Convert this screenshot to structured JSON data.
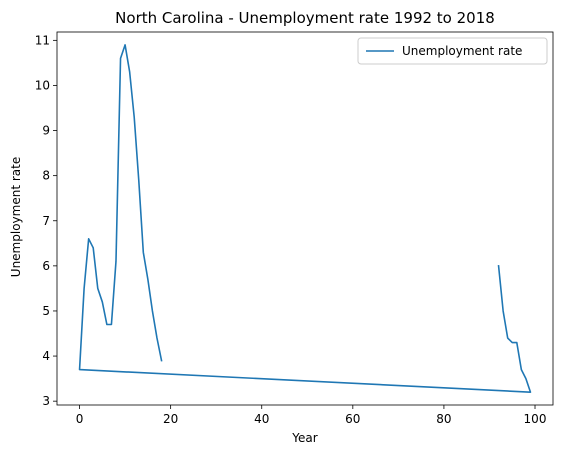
{
  "chart_data": {
    "type": "line",
    "title": "North Carolina - Unemployment rate 1992 to 2018",
    "xlabel": "Year",
    "ylabel": "Unemployment rate",
    "xlim": [
      -4.95,
      103.95
    ],
    "ylim": [
      2.915,
      11.185
    ],
    "xticks": [
      0,
      20,
      40,
      60,
      80,
      100
    ],
    "yticks": [
      3,
      4,
      5,
      6,
      7,
      8,
      9,
      10,
      11
    ],
    "xtick_labels": [
      "0",
      "20",
      "40",
      "60",
      "80",
      "100"
    ],
    "ytick_labels": [
      "3",
      "4",
      "5",
      "6",
      "7",
      "8",
      "9",
      "10",
      "11"
    ],
    "grid": false,
    "legend": "upper right",
    "series": [
      {
        "name": "Unemployment rate",
        "color": "#1f77b4",
        "x": [
          92,
          93,
          94,
          95,
          96,
          97,
          98,
          99,
          0,
          1,
          2,
          3,
          4,
          5,
          6,
          7,
          8,
          9,
          10,
          11,
          12,
          13,
          14,
          15,
          16,
          17,
          18
        ],
        "y": [
          6.0,
          5.0,
          4.4,
          4.3,
          4.3,
          3.7,
          3.5,
          3.2,
          3.7,
          5.5,
          6.6,
          6.4,
          5.5,
          5.2,
          4.7,
          4.7,
          6.1,
          10.6,
          10.9,
          10.3,
          9.3,
          7.9,
          6.3,
          5.7,
          5.0,
          4.4,
          3.9
        ]
      }
    ]
  }
}
